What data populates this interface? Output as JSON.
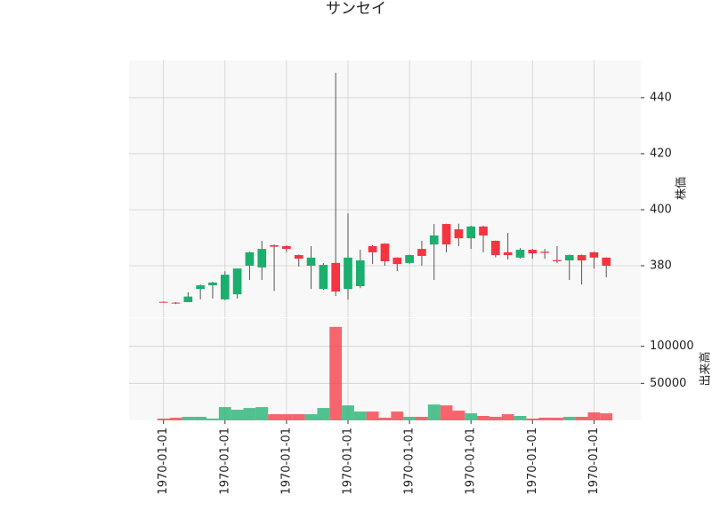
{
  "chart_data": {
    "type": "candlestick",
    "title": "サンセイ",
    "categories": [
      "1970-01-01",
      null,
      null,
      null,
      null,
      "1970-01-01",
      null,
      null,
      null,
      null,
      "1970-01-01",
      null,
      null,
      null,
      null,
      "1970-01-01",
      null,
      null,
      null,
      null,
      "1970-01-01",
      null,
      null,
      null,
      null,
      "1970-01-01",
      null,
      null,
      null,
      null,
      "1970-01-01",
      null,
      null,
      null,
      null,
      "1970-01-01",
      null
    ],
    "open": [
      367.1,
      366.8,
      367,
      371.7,
      373,
      368,
      369.8,
      380,
      379.4,
      387.3,
      387,
      383.8,
      380,
      371.7,
      381,
      371.7,
      372.7,
      387,
      387.9,
      382.9,
      381,
      386,
      387.6,
      394.9,
      393,
      389.8,
      394,
      388.9,
      384.8,
      382.9,
      385.7,
      385,
      382,
      381.9,
      383.8,
      384.8,
      382.9
    ],
    "high": [
      367.3,
      367,
      370.5,
      373.3,
      374.3,
      378,
      379,
      385,
      388.9,
      387.6,
      387.3,
      384,
      387,
      381,
      448.9,
      398.7,
      385.7,
      387.3,
      388,
      383,
      384,
      388.9,
      394.9,
      395,
      395,
      394.3,
      394.3,
      389,
      391.7,
      386.3,
      386,
      386,
      387,
      384,
      384,
      385,
      383
    ],
    "low": [
      366.9,
      366.3,
      367,
      368,
      368.3,
      367.7,
      368.3,
      374.9,
      374.9,
      371,
      384.8,
      379.7,
      371.7,
      371.4,
      369.2,
      367.9,
      372,
      380.6,
      380,
      378.1,
      380.6,
      380,
      374.9,
      384.8,
      387,
      386,
      384.8,
      383,
      382.2,
      382.5,
      382.5,
      382.5,
      381,
      374.9,
      373.3,
      379,
      375.9
    ],
    "close": [
      367,
      366.6,
      369,
      373,
      374,
      376.8,
      379,
      384.8,
      386,
      386.8,
      386,
      382.5,
      382.9,
      380.3,
      370.8,
      382.9,
      381.9,
      384.8,
      381.6,
      380.6,
      383.8,
      383.5,
      390.8,
      387.6,
      389.8,
      394,
      390.8,
      383.8,
      383.8,
      385.7,
      384.4,
      384.6,
      381.6,
      383.8,
      381.9,
      382.9,
      380
    ],
    "volume": [
      2400,
      3500,
      4800,
      4800,
      2400,
      17900,
      14300,
      16700,
      17900,
      8300,
      8300,
      8300,
      8300,
      16700,
      126200,
      20200,
      11900,
      11900,
      3600,
      11900,
      4800,
      4800,
      21400,
      20200,
      13100,
      9500,
      6000,
      4800,
      8300,
      6000,
      2400,
      3600,
      3600,
      4800,
      4800,
      10700,
      9500
    ],
    "ylim": [
      361.6,
      453.3
    ],
    "yticks": [
      380,
      400,
      420,
      440
    ],
    "ylabel": "株価",
    "volume_ylim": [
      0,
      138000
    ],
    "volume_yticks": [
      50000,
      100000
    ],
    "volume_ylabel": "出来高",
    "up_color": "#1aaf6c",
    "down_color": "#f5343f",
    "grid": true
  }
}
